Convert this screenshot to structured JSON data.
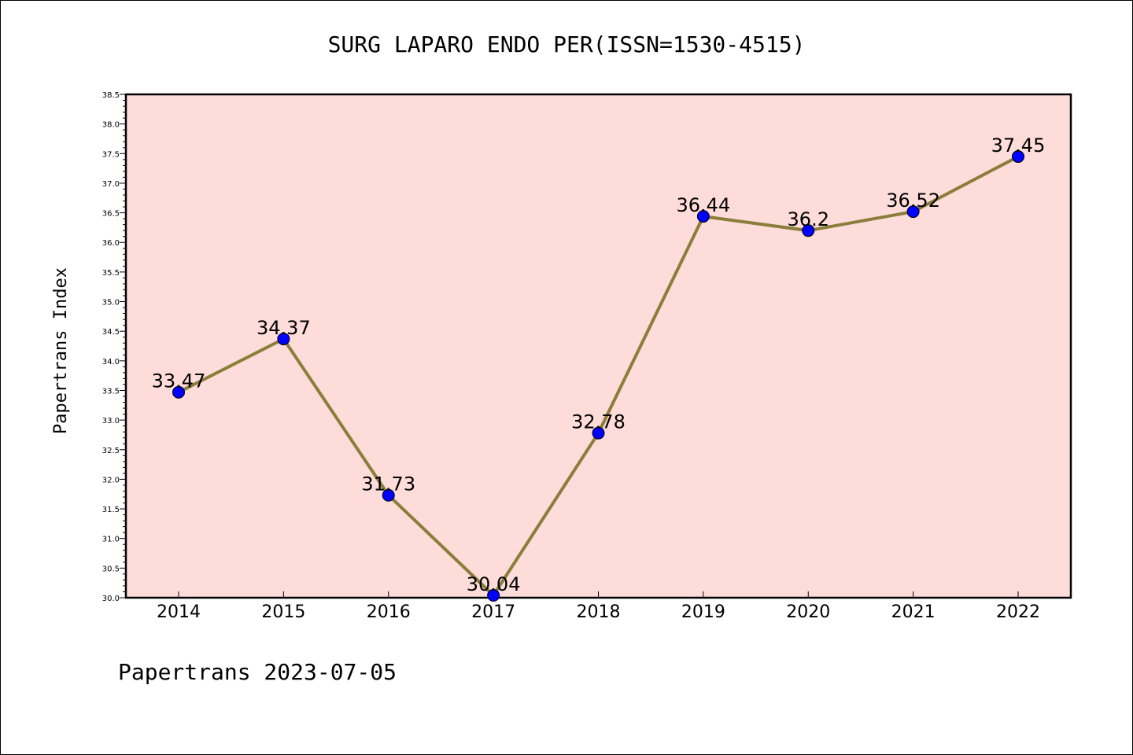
{
  "chart_data": {
    "type": "line",
    "title": "SURG LAPARO ENDO PER(ISSN=1530-4515)",
    "xlabel": "",
    "ylabel": "Papertrans Index",
    "categories": [
      "2014",
      "2015",
      "2016",
      "2017",
      "2018",
      "2019",
      "2020",
      "2021",
      "2022"
    ],
    "series": [
      {
        "name": "Papertrans Index",
        "values": [
          33.47,
          34.37,
          31.73,
          30.04,
          32.78,
          36.44,
          36.2,
          36.52,
          37.45
        ],
        "labels": [
          "33.47",
          "34.37",
          "31.73",
          "30.04",
          "32.78",
          "36.44",
          "36.2",
          "36.52",
          "37.45"
        ]
      }
    ],
    "ylim": [
      30.0,
      38.5
    ],
    "yticks": [
      "30.0",
      "30.5",
      "31.0",
      "31.5",
      "32.0",
      "32.5",
      "33.0",
      "33.5",
      "34.0",
      "34.5",
      "35.0",
      "35.5",
      "36.0",
      "36.5",
      "37.0",
      "37.5",
      "38.0",
      "38.5"
    ],
    "grid": false,
    "colors": {
      "plot_background": "#fddcd9",
      "line": "#8b7d3a",
      "marker": "#0000ff",
      "axis": "#000000"
    }
  },
  "footer": "Papertrans 2023-07-05"
}
